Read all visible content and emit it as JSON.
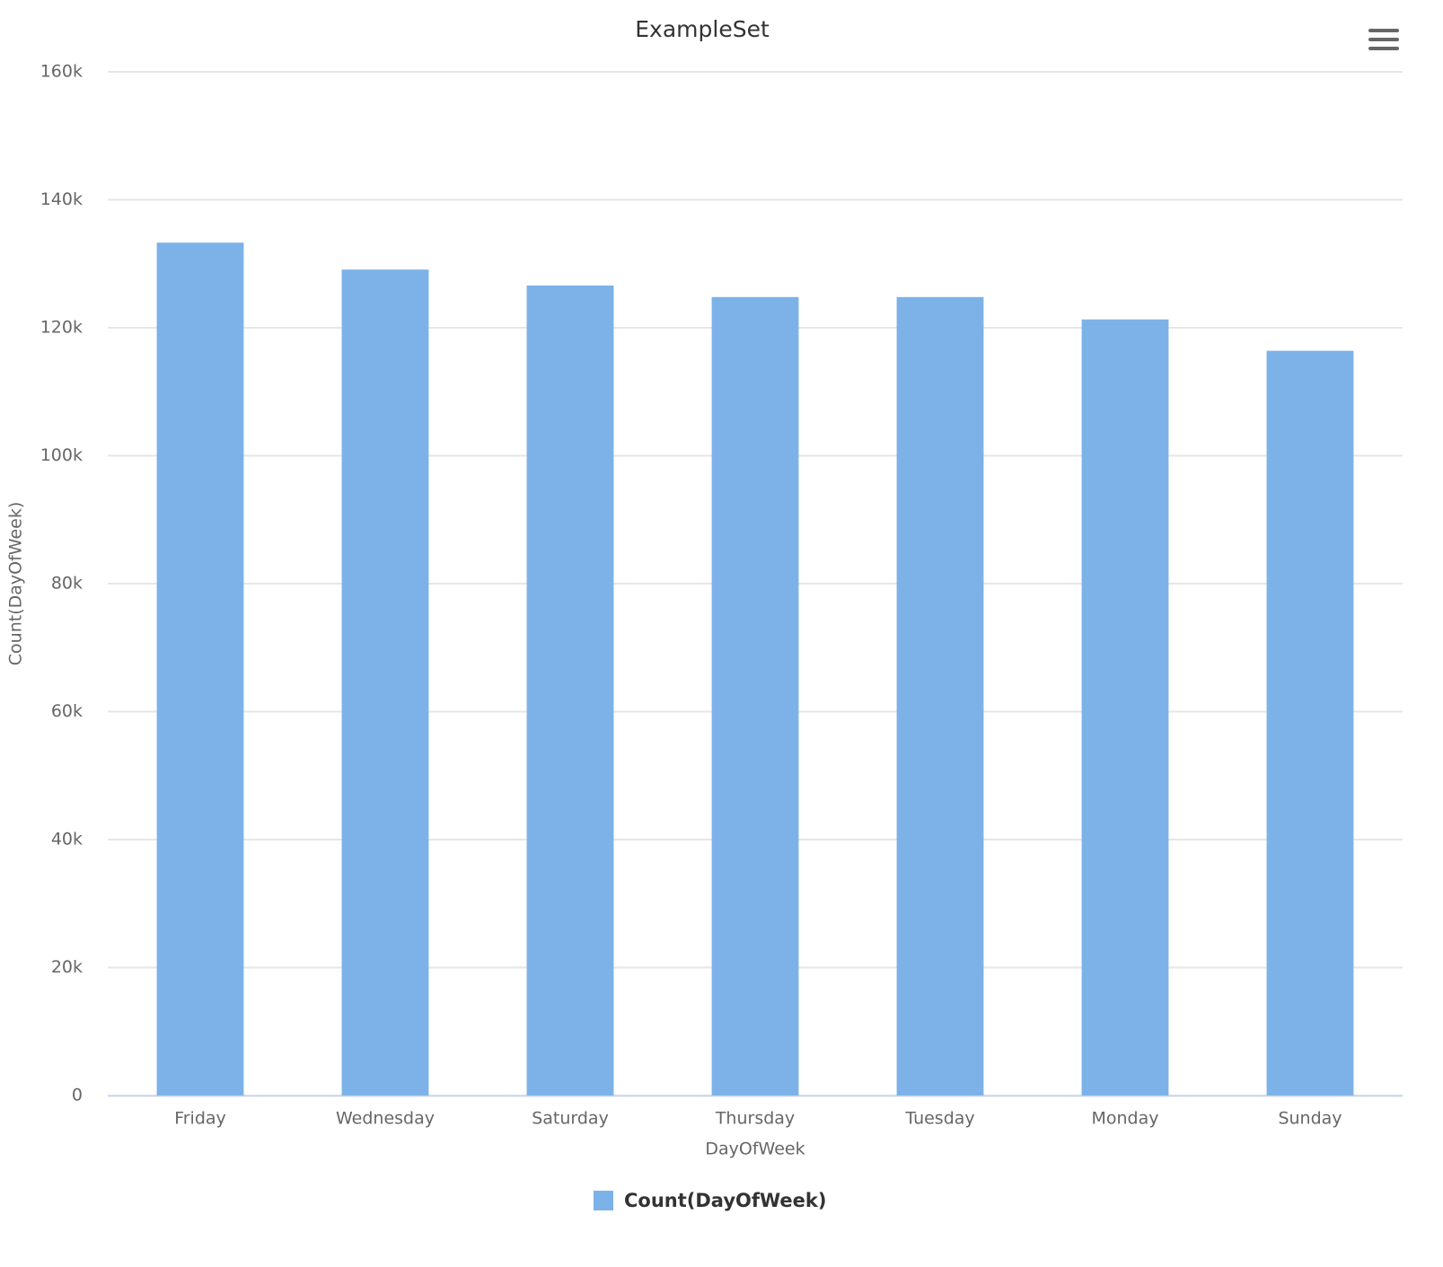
{
  "chart_data": {
    "type": "bar",
    "title": "ExampleSet",
    "xlabel": "DayOfWeek",
    "ylabel": "Count(DayOfWeek)",
    "categories": [
      "Friday",
      "Wednesday",
      "Saturday",
      "Thursday",
      "Tuesday",
      "Monday",
      "Sunday"
    ],
    "series": [
      {
        "name": "Count(DayOfWeek)",
        "color": "#7cb2e8",
        "values": [
          133300,
          129100,
          126600,
          124800,
          124800,
          121300,
          116400
        ]
      }
    ],
    "ylim": [
      0,
      160000
    ],
    "yticks": [
      0,
      {
        "value": 20000,
        "label": "20k"
      },
      {
        "value": 40000,
        "label": "40k"
      },
      {
        "value": 60000,
        "label": "60k"
      },
      {
        "value": 80000,
        "label": "80k"
      },
      {
        "value": 100000,
        "label": "100k"
      },
      {
        "value": 120000,
        "label": "120k"
      },
      {
        "value": 140000,
        "label": "140k"
      },
      {
        "value": 160000,
        "label": "160k"
      }
    ],
    "grid": true,
    "legend": "bottom"
  }
}
